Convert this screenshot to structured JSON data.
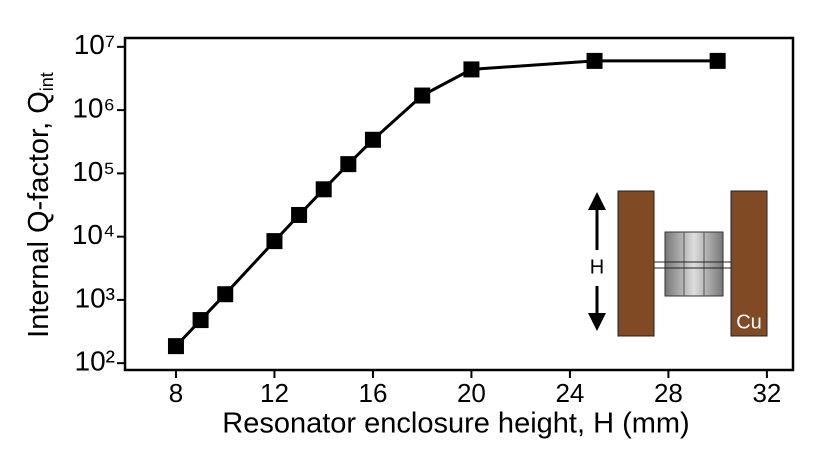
{
  "chart_data": {
    "type": "line",
    "x_label": "Resonator enclosure height, H (mm)",
    "y_label": {
      "text": "Internal Q-factor, Q",
      "subscript": "int"
    },
    "x": [
      8,
      9,
      10,
      12,
      13,
      14,
      15,
      16,
      18,
      20,
      25,
      30
    ],
    "series": [
      {
        "name": "Q_int",
        "color": "#000000",
        "values": [
          186,
          480,
          1230,
          8500,
          22000,
          56000,
          140000,
          340000,
          1700000,
          4400000,
          6000000,
          6000000
        ]
      }
    ],
    "xlim": [
      5.93,
      33.06
    ],
    "xticks": [
      8,
      12,
      16,
      20,
      24,
      28,
      32
    ],
    "ylim": [
      78,
      13800000
    ],
    "log_y": true,
    "yticks": [
      {
        "value": 100,
        "label": "10²"
      },
      {
        "value": 1000,
        "label": "10³"
      },
      {
        "value": 10000,
        "label": "10⁴"
      },
      {
        "value": 100000,
        "label": "10⁵"
      },
      {
        "value": 1000000,
        "label": "10⁶"
      },
      {
        "value": 10000000,
        "label": "10⁷"
      }
    ],
    "grid": false,
    "inset": {
      "height_label": "H",
      "material_label": "Cu"
    }
  }
}
